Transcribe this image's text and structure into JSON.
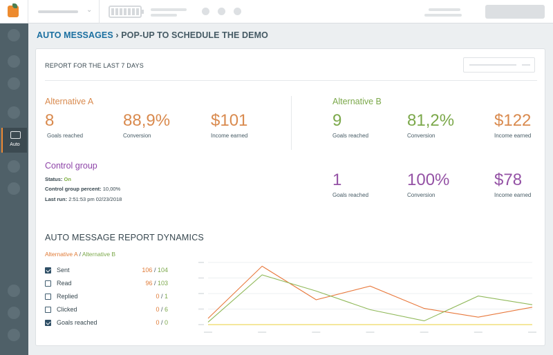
{
  "sidebar": {
    "auto_label": "Auto"
  },
  "breadcrumb": {
    "parent": "AUTO MESSAGES",
    "separator": "›",
    "current": "POP-UP TO SCHEDULE THE DEMO"
  },
  "report": {
    "title": "REPORT FOR THE LAST 7 DAYS",
    "alt_a": {
      "title": "Alternative A",
      "goals": "8",
      "goals_label": "Goals reached",
      "conversion": "88,9%",
      "conversion_label": "Conversion",
      "income": "$101",
      "income_label": "Income earned"
    },
    "alt_b": {
      "title": "Alternative B",
      "goals": "9",
      "goals_label": "Goals reached",
      "conversion": "81,2%",
      "conversion_label": "Conversion",
      "income": "$122",
      "income_label": "Income earned"
    },
    "control": {
      "title": "Control group",
      "status_label": "Status:",
      "status_value": "On",
      "percent_label": "Control group percent:",
      "percent_value": "10,00%",
      "lastrun_label": "Last run:",
      "lastrun_value": "2:51:53 pm 02/23/2018",
      "goals": "1",
      "goals_label": "Goals reached",
      "conversion": "100%",
      "conversion_label": "Conversion",
      "income": "$78",
      "income_label": "Income earned"
    }
  },
  "dynamics": {
    "title": "AUTO MESSAGE REPORT DYNAMICS",
    "legend_a": "Alternative A",
    "legend_sep": " / ",
    "legend_b": "Alternative B",
    "metrics": [
      {
        "label": "Sent",
        "checked": true,
        "a": "106",
        "b": "104"
      },
      {
        "label": "Read",
        "checked": false,
        "a": "96",
        "b": "103"
      },
      {
        "label": "Replied",
        "checked": false,
        "a": "0",
        "b": "1"
      },
      {
        "label": "Clicked",
        "checked": false,
        "a": "0",
        "b": "6"
      },
      {
        "label": "Goals reached",
        "checked": true,
        "a": "0",
        "b": "0"
      }
    ],
    "colors": {
      "alt_a": "#e8773a",
      "alt_b": "#8fb858",
      "third": "#e8cf3a",
      "grid": "#eceff1"
    }
  },
  "chart_data": {
    "type": "line",
    "x": [
      1,
      2,
      3,
      4,
      5,
      6,
      7
    ],
    "series": [
      {
        "name": "Alternative A",
        "values": [
          5,
          47,
          20,
          31,
          13,
          6,
          14
        ]
      },
      {
        "name": "Alternative B",
        "values": [
          2,
          40,
          27,
          12,
          3,
          23,
          16
        ]
      },
      {
        "name": "",
        "values": [
          0,
          0,
          0,
          0,
          0,
          0,
          0
        ]
      }
    ],
    "ylim": [
      0,
      50
    ],
    "grid": true,
    "tick_labels": false
  }
}
